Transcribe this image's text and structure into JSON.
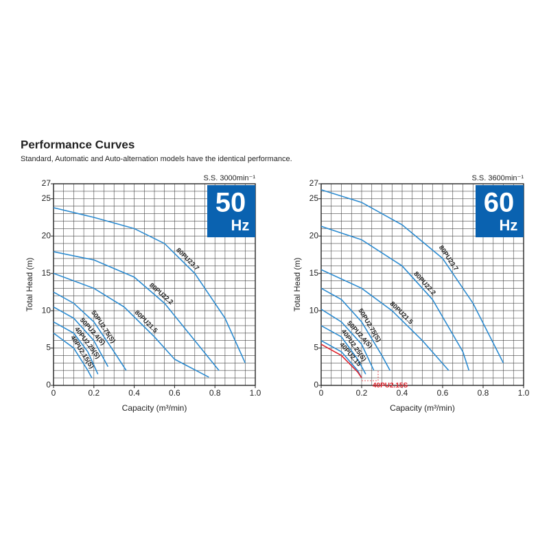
{
  "title": "Performance Curves",
  "subtitle": "Standard, Automatic and Auto-alternation models have the identical performance.",
  "chart_data": [
    {
      "type": "line",
      "subtitle": "S.S. 3000min⁻¹",
      "badge": "50",
      "badge_unit": "Hz",
      "badge_color": "#0a62b0",
      "xlabel": "Capacity (m³/min)",
      "ylabel": "Total Head (m)",
      "xlim": [
        0,
        1
      ],
      "ylim": [
        0,
        27
      ],
      "xticks": [
        0,
        0.2,
        0.4,
        0.6,
        0.8,
        {
          "value": 1,
          "label": "1.0"
        }
      ],
      "yticks": [
        0,
        5,
        10,
        15,
        20,
        25,
        27
      ],
      "grid": true,
      "xgrid_step": 0.05,
      "ygrid_step": 1,
      "series": [
        {
          "name": "80PU23.7",
          "color": "#2a8ad0",
          "x": [
            0,
            0.2,
            0.4,
            0.55,
            0.7,
            0.85,
            0.95
          ],
          "values": [
            23.8,
            22.5,
            21,
            19,
            15,
            9,
            3
          ]
        },
        {
          "name": "80PU22.2",
          "color": "#2a8ad0",
          "x": [
            0,
            0.2,
            0.4,
            0.55,
            0.7,
            0.82
          ],
          "values": [
            17.9,
            16.8,
            14.5,
            11,
            6,
            2
          ]
        },
        {
          "name": "80PU21.5",
          "color": "#2a8ad0",
          "x": [
            0,
            0.2,
            0.35,
            0.5,
            0.6,
            0.77
          ],
          "values": [
            15,
            13,
            10.5,
            6.5,
            3.5,
            1.1
          ]
        },
        {
          "name": "50PU2.75(S)",
          "color": "#2a8ad0",
          "x": [
            0,
            0.1,
            0.2,
            0.3,
            0.36
          ],
          "values": [
            12.5,
            11,
            8.5,
            4.5,
            2
          ]
        },
        {
          "name": "50PU2.4(S)",
          "color": "#2a8ad0",
          "x": [
            0,
            0.1,
            0.2,
            0.27
          ],
          "values": [
            10.5,
            9,
            6,
            2.5
          ]
        },
        {
          "name": "40PU2.25(S)",
          "color": "#2a8ad0",
          "x": [
            0,
            0.1,
            0.17,
            0.22
          ],
          "values": [
            8.5,
            7,
            4.5,
            1.5
          ]
        },
        {
          "name": "40PU2.15(S)",
          "color": "#2a8ad0",
          "x": [
            0,
            0.1,
            0.17,
            0.19
          ],
          "values": [
            7,
            5,
            2,
            1
          ]
        }
      ]
    },
    {
      "type": "line",
      "subtitle": "S.S. 3600min⁻¹",
      "badge": "60",
      "badge_unit": "Hz",
      "badge_color": "#0a62b0",
      "xlabel": "Capacity (m³/min)",
      "ylabel": "Total Head (m)",
      "xlim": [
        0,
        1
      ],
      "ylim": [
        0,
        27
      ],
      "xticks": [
        0,
        0.2,
        0.4,
        0.6,
        0.8,
        {
          "value": 1,
          "label": "1.0"
        }
      ],
      "yticks": [
        0,
        5,
        10,
        15,
        20,
        25,
        27
      ],
      "grid": true,
      "xgrid_step": 0.05,
      "ygrid_step": 1,
      "series": [
        {
          "name": "80PU23.7",
          "color": "#2a8ad0",
          "x": [
            0,
            0.2,
            0.4,
            0.6,
            0.75,
            0.9
          ],
          "values": [
            26.2,
            24.5,
            21.5,
            17,
            11,
            3
          ]
        },
        {
          "name": "80PU22.2",
          "color": "#2a8ad0",
          "x": [
            0,
            0.2,
            0.4,
            0.55,
            0.7,
            0.73
          ],
          "values": [
            21.3,
            19.5,
            16,
            11.5,
            4.5,
            2
          ]
        },
        {
          "name": "80PU21.5",
          "color": "#2a8ad0",
          "x": [
            0,
            0.2,
            0.35,
            0.5,
            0.63
          ],
          "values": [
            15.5,
            13,
            10,
            6,
            2
          ]
        },
        {
          "name": "50PU2.75(S)",
          "color": "#2a8ad0",
          "x": [
            0,
            0.1,
            0.2,
            0.3,
            0.34
          ],
          "values": [
            13,
            11.5,
            8.5,
            4,
            2
          ]
        },
        {
          "name": "50PU2.4(S)",
          "color": "#2a8ad0",
          "x": [
            0,
            0.1,
            0.2,
            0.26
          ],
          "values": [
            10.2,
            8.5,
            5.5,
            2
          ]
        },
        {
          "name": "40PU2.25(S)",
          "color": "#2a8ad0",
          "x": [
            0,
            0.1,
            0.18,
            0.22
          ],
          "values": [
            8,
            6.5,
            3.5,
            1.5
          ]
        },
        {
          "name": "40PU2.15",
          "color": "#2a8ad0",
          "x": [
            0,
            0.1,
            0.18,
            0.2
          ],
          "values": [
            6,
            4.5,
            2,
            1
          ]
        },
        {
          "name": "40PU2.15S",
          "color": "#e0202a",
          "label_position": "end",
          "x": [
            0,
            0.1,
            0.18,
            0.2
          ],
          "values": [
            5.5,
            4,
            1.8,
            1
          ]
        }
      ]
    }
  ]
}
